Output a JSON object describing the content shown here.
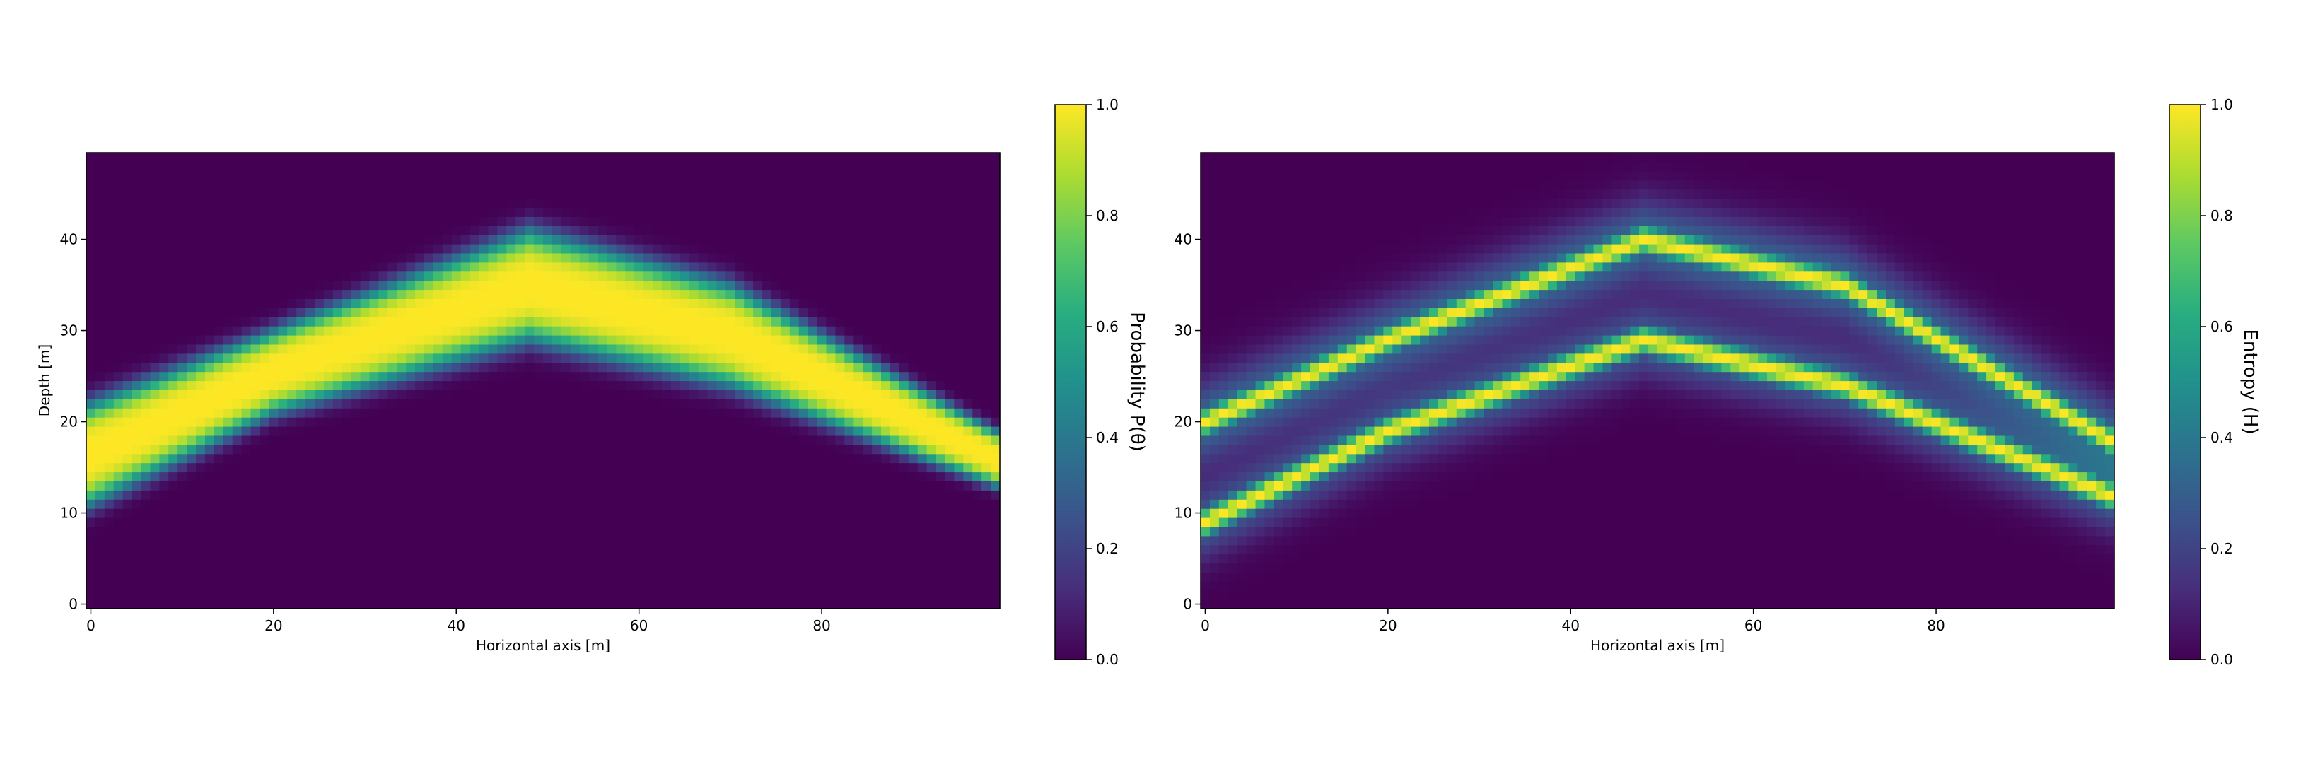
{
  "chart_data": [
    {
      "type": "heatmap",
      "title": "",
      "xlabel": "Horizontal axis [m]",
      "ylabel": "Depth [m]",
      "xlim": [
        -0.5,
        99.5
      ],
      "ylim": [
        -0.5,
        49.5
      ],
      "xticks": [
        "0",
        "20",
        "40",
        "60",
        "80"
      ],
      "yticks": [
        "0",
        "10",
        "20",
        "30",
        "40"
      ],
      "colormap": "viridis",
      "colorbar": {
        "label": "Probability P(θ)",
        "ticks": [
          "0.0",
          "0.2",
          "0.4",
          "0.6",
          "0.8",
          "1.0"
        ],
        "range": [
          0,
          1
        ]
      },
      "grid": false,
      "field": {
        "kind": "band",
        "description_points": [
          [
            0,
            17
          ],
          [
            20,
            26
          ],
          [
            48,
            35
          ],
          [
            70,
            29
          ],
          [
            99,
            16
          ]
        ],
        "upper_edge": [
          [
            0,
            22
          ],
          [
            20,
            30
          ],
          [
            48,
            41
          ],
          [
            70,
            35
          ],
          [
            99,
            19
          ]
        ],
        "lower_edge": [
          [
            0,
            11
          ],
          [
            20,
            21
          ],
          [
            48,
            29
          ],
          [
            70,
            24
          ],
          [
            99,
            13
          ]
        ]
      }
    },
    {
      "type": "heatmap",
      "title": "",
      "xlabel": "Horizontal axis [m]",
      "ylabel": "",
      "xlim": [
        -0.5,
        99.5
      ],
      "ylim": [
        -0.5,
        49.5
      ],
      "xticks": [
        "0",
        "20",
        "40",
        "60",
        "80"
      ],
      "yticks": [
        "0",
        "10",
        "20",
        "30",
        "40"
      ],
      "colormap": "viridis",
      "colorbar": {
        "label": "Entropy (H)",
        "ticks": [
          "0.0",
          "0.2",
          "0.4",
          "0.6",
          "0.8",
          "1.0"
        ],
        "range": [
          0,
          1
        ]
      },
      "grid": false,
      "field": {
        "kind": "two-lines",
        "upper_line": [
          [
            0,
            20
          ],
          [
            20,
            29
          ],
          [
            48,
            40
          ],
          [
            70,
            35
          ],
          [
            99,
            18
          ]
        ],
        "lower_line": [
          [
            0,
            9
          ],
          [
            20,
            19
          ],
          [
            48,
            29
          ],
          [
            70,
            24
          ],
          [
            99,
            12
          ]
        ]
      }
    }
  ]
}
